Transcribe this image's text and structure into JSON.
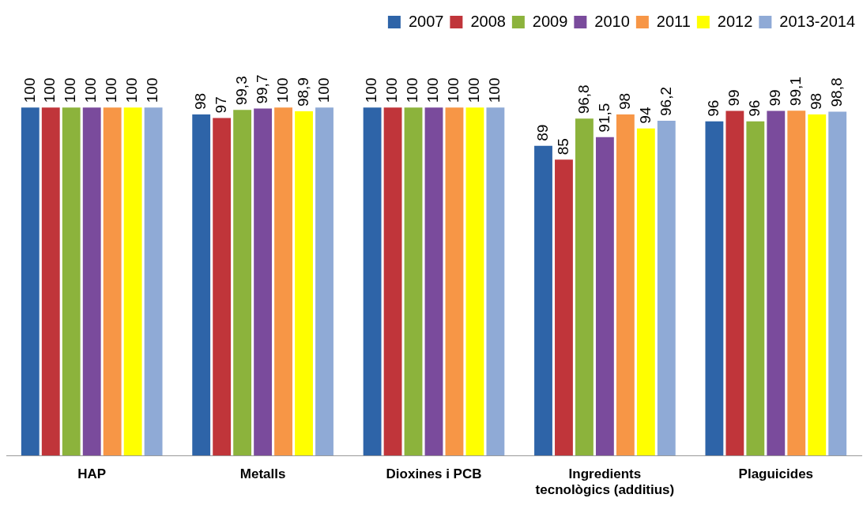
{
  "chart_data": {
    "type": "bar",
    "categories": [
      "HAP",
      "Metalls",
      "Dioxines i PCB",
      "Ingredients tecnològics (additius)",
      "Plaguicides"
    ],
    "series": [
      {
        "name": "2007",
        "color": "#2e64a8",
        "values": [
          100,
          98,
          100,
          89,
          96
        ],
        "value_labels": [
          "100",
          "98",
          "100",
          "89",
          "96"
        ]
      },
      {
        "name": "2008",
        "color": "#c0353a",
        "values": [
          100,
          97,
          100,
          85,
          99
        ],
        "value_labels": [
          "100",
          "97",
          "100",
          "85",
          "99"
        ]
      },
      {
        "name": "2009",
        "color": "#8cb33c",
        "values": [
          100,
          99.3,
          100,
          96.8,
          96
        ],
        "value_labels": [
          "100",
          "99,3",
          "100",
          "96,8",
          "96"
        ]
      },
      {
        "name": "2010",
        "color": "#7a4b9c",
        "values": [
          100,
          99.7,
          100,
          91.5,
          99
        ],
        "value_labels": [
          "100",
          "99,7",
          "100",
          "91,5",
          "99"
        ]
      },
      {
        "name": "2011",
        "color": "#f79646",
        "values": [
          100,
          100,
          100,
          98,
          99.1
        ],
        "value_labels": [
          "100",
          "100",
          "100",
          "98",
          "99,1"
        ]
      },
      {
        "name": "2012",
        "color": "#ffff00",
        "values": [
          100,
          98.9,
          100,
          94,
          98
        ],
        "value_labels": [
          "100",
          "98,9",
          "100",
          "94",
          "98"
        ]
      },
      {
        "name": "2013-2014",
        "color": "#8faad6",
        "values": [
          100,
          100,
          100,
          96.2,
          98.8
        ],
        "value_labels": [
          "100",
          "100",
          "100",
          "96,2",
          "98,8"
        ]
      }
    ],
    "legend": "top right",
    "grid": false
  }
}
